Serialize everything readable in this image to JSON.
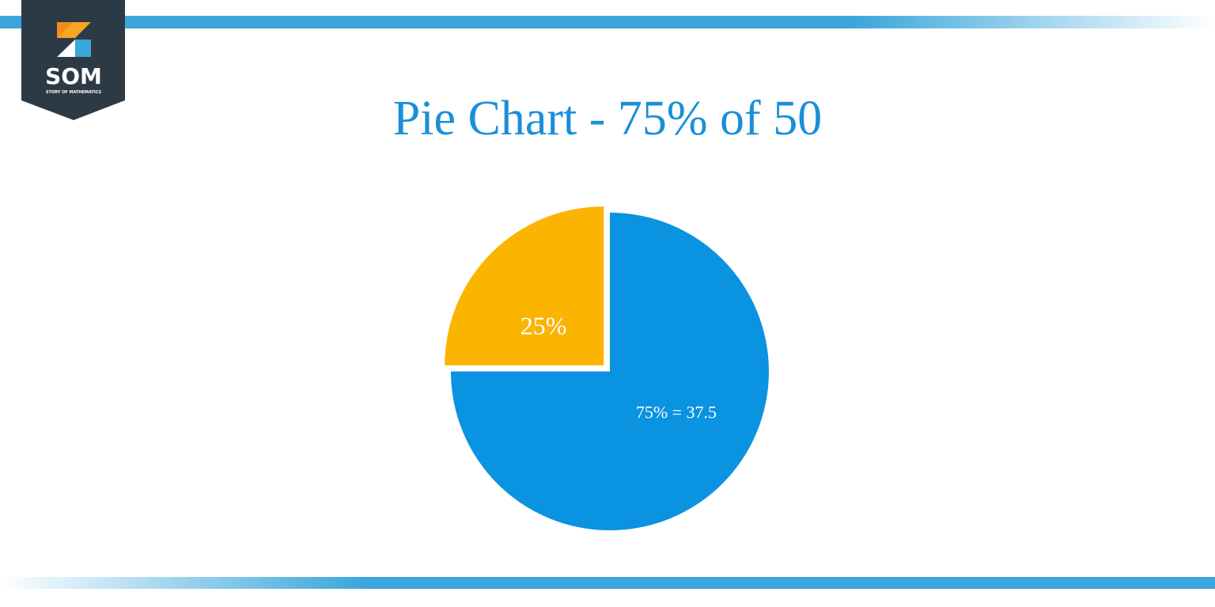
{
  "logo": {
    "text": "SOM",
    "tagline": "STORY OF MATHEMATICS"
  },
  "chart_data": {
    "type": "pie",
    "title": "Pie Chart -  75% of 50",
    "categories": [
      null,
      null
    ],
    "values": [
      75,
      25
    ],
    "value_labels": [
      "75% = 37.5",
      "25%"
    ],
    "colors": [
      "#0a93e0",
      "#fbb400"
    ],
    "exploded": [
      false,
      true
    ]
  }
}
